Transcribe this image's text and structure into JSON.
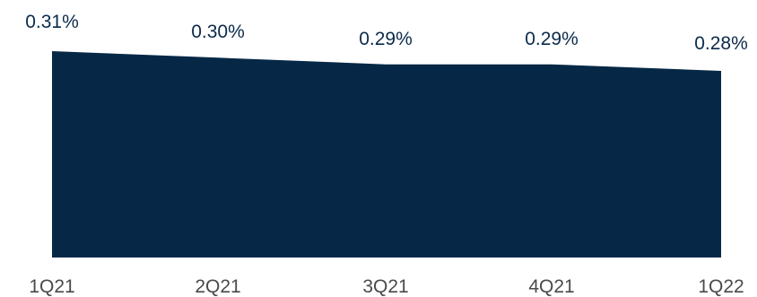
{
  "chart_data": {
    "type": "area",
    "title": "",
    "xlabel": "",
    "ylabel": "",
    "categories": [
      "1Q21",
      "2Q21",
      "3Q21",
      "4Q21",
      "1Q22"
    ],
    "series": [
      {
        "values": [
          0.31,
          0.3,
          0.29,
          0.29,
          0.28
        ],
        "data_labels": [
          "0.31%",
          "0.30%",
          "0.29%",
          "0.29%",
          "0.28%"
        ],
        "color": "#062846"
      }
    ],
    "ylim": [
      0,
      0.31
    ],
    "grid": false,
    "legend": "none"
  }
}
